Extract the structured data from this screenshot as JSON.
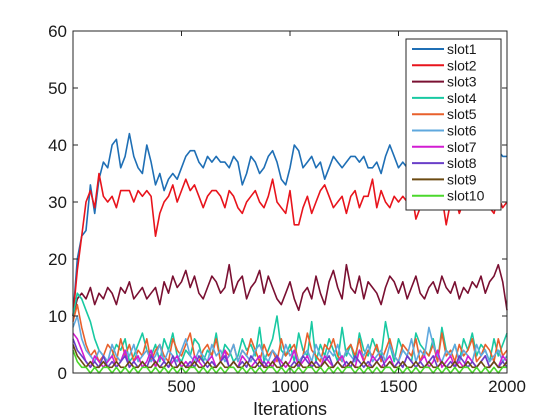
{
  "chart_data": {
    "type": "line",
    "title": "",
    "xlabel": "Iterations",
    "ylabel": "",
    "xlim": [
      0,
      2000
    ],
    "ylim": [
      0,
      60
    ],
    "xticks": [
      500,
      1000,
      1500,
      2000
    ],
    "xtick_labels": [
      "500",
      "1000",
      "1500",
      "2000"
    ],
    "yticks": [
      0,
      10,
      20,
      30,
      40,
      50,
      60
    ],
    "ytick_labels": [
      "0",
      "10",
      "20",
      "30",
      "40",
      "50",
      "60"
    ],
    "grid": false,
    "legend_position": "top-right",
    "x": [
      0,
      20,
      40,
      60,
      80,
      100,
      120,
      140,
      160,
      180,
      200,
      220,
      240,
      260,
      280,
      300,
      320,
      340,
      360,
      380,
      400,
      420,
      440,
      460,
      480,
      500,
      520,
      540,
      560,
      580,
      600,
      620,
      640,
      660,
      680,
      700,
      720,
      740,
      760,
      780,
      800,
      820,
      840,
      860,
      880,
      900,
      920,
      940,
      960,
      980,
      1000,
      1020,
      1040,
      1060,
      1080,
      1100,
      1120,
      1140,
      1160,
      1180,
      1200,
      1220,
      1240,
      1260,
      1280,
      1300,
      1320,
      1340,
      1360,
      1380,
      1400,
      1420,
      1440,
      1460,
      1480,
      1500,
      1520,
      1540,
      1560,
      1580,
      1600,
      1620,
      1640,
      1660,
      1680,
      1700,
      1720,
      1740,
      1760,
      1780,
      1800,
      1820,
      1840,
      1860,
      1880,
      1900,
      1920,
      1940,
      1960,
      1980,
      2000
    ],
    "series": [
      {
        "name": "slot1",
        "color": "#1f6fb5",
        "values": [
          10,
          20,
          24,
          25,
          33,
          28,
          34,
          37,
          36,
          40,
          41,
          36,
          38,
          42,
          38,
          36,
          35,
          40,
          37,
          33,
          35,
          32,
          34,
          35,
          34,
          36,
          38,
          39,
          39,
          37,
          36,
          38,
          37,
          38,
          37,
          37,
          36,
          38,
          37,
          33,
          35,
          38,
          37,
          35,
          36,
          38,
          39,
          37,
          34,
          33,
          36,
          40,
          39,
          36,
          37,
          38,
          36,
          37,
          34,
          36,
          38,
          37,
          36,
          37,
          38,
          38,
          37,
          38,
          36,
          36,
          37,
          35,
          38,
          40,
          38,
          36,
          37,
          36,
          38,
          39,
          37,
          36,
          38,
          36,
          34,
          36,
          38,
          37,
          36,
          39,
          37,
          38,
          36,
          37,
          38,
          35,
          36,
          34,
          39,
          38,
          38
        ]
      },
      {
        "name": "slot2",
        "color": "#e8141c",
        "values": [
          10,
          18,
          24,
          30,
          32,
          29,
          35,
          31,
          30,
          31,
          29,
          32,
          32,
          32,
          30,
          32,
          31,
          32,
          31,
          24,
          28,
          30,
          31,
          33,
          30,
          32,
          34,
          32,
          33,
          31,
          29,
          31,
          32,
          32,
          31,
          29,
          32,
          31,
          29,
          28,
          30,
          31,
          32,
          30,
          29,
          31,
          34,
          30,
          29,
          28,
          32,
          26,
          26,
          29,
          31,
          28,
          30,
          32,
          33,
          31,
          29,
          30,
          31,
          28,
          31,
          32,
          29,
          31,
          31,
          34,
          29,
          32,
          30,
          29,
          31,
          30,
          31,
          30,
          32,
          27,
          29,
          31,
          30,
          29,
          30,
          31,
          26,
          30,
          31,
          28,
          30,
          31,
          29,
          30,
          32,
          31,
          29,
          28,
          31,
          29,
          30
        ]
      },
      {
        "name": "slot3",
        "color": "#7a1032",
        "values": [
          10,
          13,
          14,
          13,
          15,
          12,
          14,
          13,
          15,
          14,
          12,
          15,
          14,
          16,
          13,
          14,
          15,
          13,
          14,
          15,
          12,
          16,
          14,
          17,
          15,
          16,
          18,
          15,
          17,
          14,
          13,
          15,
          17,
          16,
          14,
          15,
          19,
          14,
          16,
          17,
          13,
          15,
          16,
          18,
          14,
          17,
          15,
          13,
          12,
          14,
          16,
          13,
          11,
          14,
          15,
          13,
          17,
          14,
          12,
          16,
          18,
          15,
          13,
          19,
          15,
          14,
          17,
          13,
          16,
          15,
          14,
          12,
          15,
          17,
          16,
          14,
          16,
          13,
          15,
          17,
          14,
          13,
          15,
          16,
          14,
          17,
          15,
          14,
          16,
          13,
          15,
          14,
          16,
          15,
          17,
          14,
          16,
          17,
          19,
          16,
          11
        ]
      },
      {
        "name": "slot4",
        "color": "#18c9a2",
        "values": [
          10,
          14,
          13,
          11,
          9,
          6,
          4,
          3,
          2,
          3,
          5,
          4,
          6,
          2,
          3,
          5,
          7,
          4,
          3,
          5,
          2,
          6,
          4,
          7,
          3,
          2,
          4,
          3,
          6,
          5,
          2,
          4,
          3,
          7,
          2,
          5,
          4,
          2,
          3,
          6,
          4,
          5,
          3,
          8,
          2,
          4,
          6,
          10,
          4,
          3,
          5,
          2,
          7,
          4,
          3,
          9,
          2,
          5,
          3,
          6,
          4,
          2,
          8,
          3,
          5,
          2,
          7,
          4,
          3,
          6,
          4,
          3,
          9,
          5,
          2,
          6,
          4,
          3,
          2,
          7,
          5,
          4,
          3,
          6,
          2,
          8,
          4,
          3,
          5,
          2,
          6,
          4,
          7,
          3,
          5,
          4,
          2,
          6,
          3,
          5,
          7
        ]
      },
      {
        "name": "slot5",
        "color": "#e8602c",
        "values": [
          9,
          12,
          8,
          5,
          3,
          4,
          2,
          3,
          5,
          4,
          2,
          6,
          3,
          5,
          2,
          4,
          3,
          6,
          2,
          4,
          5,
          3,
          2,
          6,
          4,
          3,
          5,
          7,
          3,
          2,
          4,
          5,
          3,
          6,
          2,
          4,
          3,
          5,
          2,
          4,
          3,
          6,
          4,
          2,
          5,
          3,
          4,
          2,
          6,
          3,
          4,
          5,
          2,
          3,
          7,
          4,
          3,
          2,
          5,
          4,
          6,
          3,
          2,
          4,
          5,
          3,
          6,
          2,
          4,
          3,
          5,
          2,
          4,
          6,
          3,
          2,
          5,
          4,
          3,
          6,
          2,
          4,
          3,
          5,
          2,
          7,
          3,
          4,
          2,
          5,
          3,
          4,
          6,
          2,
          3,
          5,
          4,
          2,
          6,
          3,
          4
        ]
      },
      {
        "name": "slot6",
        "color": "#5fa8de",
        "values": [
          8,
          10,
          6,
          4,
          3,
          2,
          4,
          3,
          2,
          5,
          3,
          2,
          4,
          3,
          5,
          2,
          3,
          4,
          2,
          3,
          5,
          2,
          4,
          3,
          2,
          4,
          6,
          3,
          2,
          4,
          3,
          2,
          5,
          3,
          4,
          2,
          3,
          5,
          2,
          4,
          3,
          2,
          4,
          5,
          3,
          2,
          4,
          3,
          2,
          5,
          3,
          4,
          2,
          3,
          4,
          2,
          5,
          3,
          2,
          4,
          3,
          5,
          2,
          4,
          3,
          2,
          4,
          3,
          5,
          2,
          3,
          4,
          2,
          5,
          3,
          2,
          4,
          3,
          6,
          2,
          4,
          3,
          8,
          5,
          3,
          2,
          4,
          3,
          5,
          2,
          4,
          3,
          2,
          5,
          3,
          4,
          2,
          3,
          4,
          2,
          3
        ]
      },
      {
        "name": "slot7",
        "color": "#d21cd2",
        "values": [
          7,
          6,
          4,
          2,
          1,
          3,
          2,
          1,
          2,
          3,
          1,
          2,
          4,
          1,
          2,
          3,
          1,
          2,
          4,
          1,
          3,
          2,
          1,
          2,
          3,
          1,
          2,
          1,
          3,
          2,
          1,
          2,
          3,
          1,
          2,
          4,
          1,
          2,
          1,
          3,
          2,
          1,
          2,
          3,
          1,
          2,
          1,
          3,
          2,
          1,
          2,
          4,
          1,
          2,
          3,
          1,
          2,
          1,
          3,
          2,
          1,
          2,
          3,
          1,
          2,
          1,
          4,
          2,
          1,
          3,
          2,
          1,
          2,
          3,
          1,
          2,
          1,
          3,
          2,
          1,
          2,
          3,
          1,
          2,
          4,
          1,
          2,
          3,
          1,
          2,
          1,
          3,
          2,
          1,
          2,
          3,
          1,
          2,
          1,
          3,
          2
        ]
      },
      {
        "name": "slot8",
        "color": "#6a3fc8",
        "values": [
          6,
          4,
          3,
          2,
          1,
          2,
          1,
          3,
          1,
          2,
          1,
          2,
          3,
          1,
          2,
          1,
          2,
          1,
          3,
          2,
          1,
          2,
          1,
          3,
          1,
          2,
          1,
          2,
          1,
          3,
          2,
          1,
          2,
          1,
          2,
          3,
          1,
          2,
          1,
          2,
          1,
          3,
          2,
          1,
          2,
          1,
          2,
          3,
          1,
          2,
          1,
          2,
          1,
          3,
          2,
          1,
          2,
          1,
          2,
          3,
          1,
          2,
          1,
          2,
          1,
          3,
          2,
          1,
          2,
          1,
          2,
          3,
          1,
          2,
          1,
          2,
          1,
          3,
          2,
          1,
          2,
          1,
          2,
          3,
          1,
          2,
          1,
          2,
          1,
          3,
          2,
          1,
          2,
          1,
          2,
          3,
          1,
          2,
          1,
          2,
          1
        ]
      },
      {
        "name": "slot9",
        "color": "#6b4a12",
        "values": [
          5,
          3,
          2,
          1,
          2,
          1,
          1,
          2,
          1,
          1,
          2,
          1,
          1,
          2,
          1,
          1,
          2,
          1,
          1,
          2,
          1,
          1,
          2,
          1,
          1,
          2,
          1,
          1,
          2,
          1,
          1,
          2,
          1,
          1,
          2,
          1,
          1,
          2,
          1,
          1,
          2,
          1,
          1,
          2,
          1,
          1,
          2,
          1,
          1,
          2,
          1,
          1,
          2,
          1,
          1,
          2,
          1,
          1,
          2,
          1,
          1,
          2,
          1,
          1,
          2,
          1,
          1,
          2,
          1,
          1,
          2,
          1,
          1,
          2,
          1,
          1,
          2,
          1,
          1,
          2,
          1,
          1,
          2,
          1,
          1,
          2,
          1,
          1,
          2,
          1,
          1,
          2,
          1,
          1,
          2,
          1,
          1,
          2,
          1,
          1,
          2
        ]
      },
      {
        "name": "slot10",
        "color": "#4bd82c",
        "values": [
          4,
          2,
          1,
          1,
          0,
          1,
          0,
          1,
          1,
          0,
          1,
          0,
          1,
          0,
          1,
          0,
          1,
          1,
          0,
          1,
          0,
          1,
          0,
          1,
          0,
          1,
          0,
          1,
          1,
          0,
          1,
          0,
          1,
          0,
          1,
          0,
          1,
          1,
          0,
          1,
          0,
          1,
          0,
          1,
          0,
          1,
          1,
          0,
          1,
          0,
          1,
          0,
          1,
          0,
          1,
          1,
          0,
          1,
          0,
          1,
          0,
          1,
          0,
          1,
          1,
          0,
          1,
          0,
          1,
          0,
          1,
          0,
          1,
          1,
          0,
          1,
          0,
          1,
          0,
          1,
          0,
          1,
          1,
          0,
          1,
          0,
          1,
          0,
          1,
          0,
          1,
          1,
          0,
          1,
          0,
          1,
          0,
          1,
          0,
          1,
          1
        ]
      }
    ]
  }
}
